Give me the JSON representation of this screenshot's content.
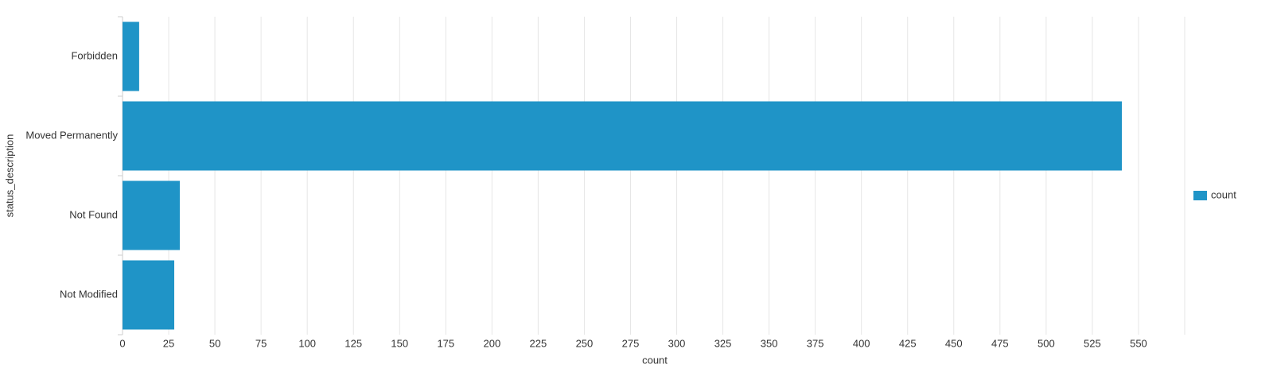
{
  "chart_data": {
    "type": "bar",
    "orientation": "horizontal",
    "categories": [
      "Forbidden",
      "Moved Permanently",
      "Not Found",
      "Not Modified"
    ],
    "series": [
      {
        "name": "count",
        "color": "#1f94c7",
        "values": [
          9,
          541,
          31,
          28
        ]
      }
    ],
    "x_label": "count",
    "y_label": "status_description",
    "xlim": [
      0,
      575
    ],
    "xticks": [
      0,
      25,
      50,
      75,
      100,
      125,
      150,
      175,
      200,
      225,
      250,
      275,
      300,
      325,
      350,
      375,
      400,
      425,
      450,
      475,
      500,
      525,
      550
    ],
    "grid": true,
    "legend": "right"
  }
}
